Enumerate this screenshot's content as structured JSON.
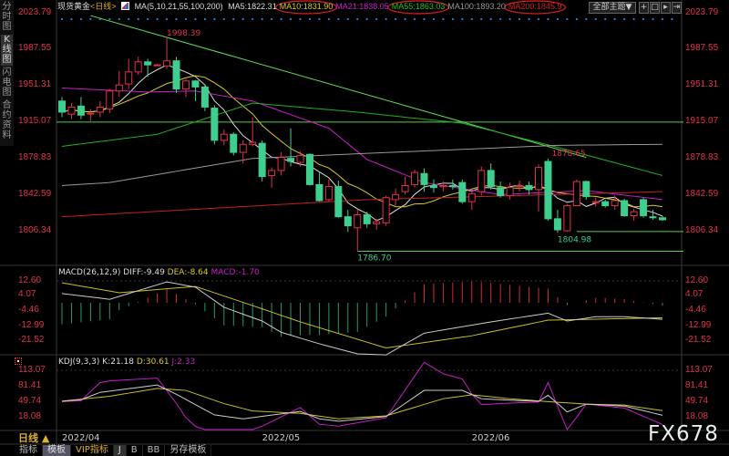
{
  "sidebar": {
    "tabs": [
      {
        "label": "分时图",
        "active": false
      },
      {
        "label": "K线图",
        "active": true
      },
      {
        "label": "闪电图",
        "active": false
      },
      {
        "label": "合约资料",
        "active": false
      }
    ]
  },
  "header": {
    "instrument": "现货黄金",
    "period": "<日线>",
    "ma_params": "MA(5,10,21,55,100,200)",
    "ma_values": [
      {
        "label": "MA5:1822.31",
        "color": "#dddddd",
        "circled": false
      },
      {
        "label": "MA10:1831.90",
        "color": "#d6cc22",
        "circled": true
      },
      {
        "label": "MA21:1838.05",
        "color": "#c81ec8",
        "circled": false
      },
      {
        "label": "MA55:1863.03",
        "color": "#22c022",
        "circled": true
      },
      {
        "label": "MA100:1893.20",
        "color": "#999999",
        "circled": false
      },
      {
        "label": "MA200:1845.9",
        "color": "#d42020",
        "circled": true
      }
    ],
    "theme_button": "全部主题▼",
    "tool_icons": [
      "crosshair-icon",
      "zoom-in-icon",
      "play-icon",
      "step-forward-icon"
    ]
  },
  "price_axis": [
    "2023.79",
    "1987.55",
    "1951.31",
    "1915.07",
    "1878.83",
    "1842.59",
    "1806.34"
  ],
  "macd": {
    "title": "MACD(26,12,9)",
    "diff_label": "DIFF:-9.49",
    "dea_label": "DEA:-8.64",
    "macd_label": "MACD:-1.70",
    "axis": [
      "12.60",
      "4.07",
      "-4.46",
      "-12.99",
      "-21.52"
    ]
  },
  "kdj": {
    "title": "KDJ(9,3,3)",
    "k_label": "K:21.18",
    "d_label": "D:30.61",
    "j_label": "J:2.33",
    "axis": [
      "113.07",
      "81.41",
      "49.74",
      "18.08"
    ]
  },
  "date_axis": {
    "period_label": "日线 ▲",
    "labels": [
      {
        "text": "2022/04",
        "date": "2022-04-01"
      },
      {
        "text": "2022/05",
        "date": "2022-05-02"
      },
      {
        "text": "2022/06",
        "date": "2022-06-01"
      }
    ]
  },
  "bottom_tabs": [
    {
      "label": "指标",
      "active": false,
      "color": "#bbbbbb"
    },
    {
      "label": "模板",
      "active": true,
      "color": "#dddddd"
    },
    {
      "label": "VIP指标",
      "active": false,
      "color": "#e0b030"
    },
    {
      "label": "J",
      "active": true,
      "color": "#dddddd"
    },
    {
      "label": "B",
      "active": false,
      "color": "#bbbbbb"
    },
    {
      "label": "BB",
      "active": false,
      "color": "#bbbbbb"
    },
    {
      "label": "另存模板",
      "active": false,
      "color": "#bbbbbb"
    }
  ],
  "watermark": "FX678",
  "colors": {
    "up": "#e0334a",
    "down": "#3ecf8e",
    "axis_text": "#e0334a",
    "trendline": "#66dd55",
    "hline": "#55cc44"
  },
  "chart_data": {
    "type": "candlestick",
    "price_range": [
      1775,
      2030
    ],
    "candles": [
      [
        "2022-04-01",
        1936,
        1940,
        1920,
        1925
      ],
      [
        "2022-04-04",
        1923,
        1934,
        1918,
        1930
      ],
      [
        "2022-04-05",
        1931,
        1940,
        1918,
        1922
      ],
      [
        "2022-04-06",
        1923,
        1928,
        1916,
        1924
      ],
      [
        "2022-04-07",
        1925,
        1936,
        1920,
        1930
      ],
      [
        "2022-04-08",
        1928,
        1948,
        1924,
        1946
      ],
      [
        "2022-04-11",
        1946,
        1966,
        1940,
        1952
      ],
      [
        "2022-04-12",
        1953,
        1978,
        1948,
        1965
      ],
      [
        "2022-04-13",
        1965,
        1980,
        1962,
        1975
      ],
      [
        "2022-04-14",
        1975,
        1978,
        1960,
        1972
      ],
      [
        "2022-04-15",
        1972,
        1973,
        1971,
        1972
      ],
      [
        "2022-04-18",
        1971,
        1998.39,
        1968,
        1976
      ],
      [
        "2022-04-19",
        1976,
        1980,
        1944,
        1948
      ],
      [
        "2022-04-20",
        1948,
        1958,
        1940,
        1956
      ],
      [
        "2022-04-21",
        1956,
        1957,
        1936,
        1950
      ],
      [
        "2022-04-22",
        1950,
        1952,
        1926,
        1930
      ],
      [
        "2022-04-25",
        1929,
        1932,
        1893,
        1897
      ],
      [
        "2022-04-26",
        1897,
        1908,
        1892,
        1903
      ],
      [
        "2022-04-27",
        1903,
        1905,
        1882,
        1885
      ],
      [
        "2022-04-28",
        1885,
        1897,
        1874,
        1893
      ],
      [
        "2022-04-29",
        1893,
        1920,
        1891,
        1895
      ],
      [
        "2022-05-02",
        1894,
        1897,
        1856,
        1861
      ],
      [
        "2022-05-03",
        1862,
        1870,
        1850,
        1867
      ],
      [
        "2022-05-04",
        1867,
        1885,
        1862,
        1880
      ],
      [
        "2022-05-05",
        1879,
        1909,
        1871,
        1876
      ],
      [
        "2022-05-06",
        1875,
        1886,
        1871,
        1882
      ],
      [
        "2022-05-09",
        1883,
        1884,
        1852,
        1853
      ],
      [
        "2022-05-10",
        1853,
        1866,
        1836,
        1837
      ],
      [
        "2022-05-11",
        1838,
        1858,
        1836,
        1851
      ],
      [
        "2022-05-12",
        1851,
        1857,
        1820,
        1821
      ],
      [
        "2022-05-13",
        1821,
        1828,
        1806,
        1812
      ],
      [
        "2022-05-16",
        1810,
        1828,
        1786.7,
        1823
      ],
      [
        "2022-05-17",
        1823,
        1826,
        1810,
        1814
      ],
      [
        "2022-05-18",
        1814,
        1819,
        1808,
        1816
      ],
      [
        "2022-05-19",
        1815,
        1842,
        1812,
        1840
      ],
      [
        "2022-05-20",
        1838,
        1849,
        1832,
        1843
      ],
      [
        "2022-05-23",
        1846,
        1861,
        1843,
        1852
      ],
      [
        "2022-05-24",
        1853,
        1868,
        1850,
        1865
      ],
      [
        "2022-05-25",
        1864,
        1869,
        1846,
        1853
      ],
      [
        "2022-05-26",
        1852,
        1858,
        1845,
        1850
      ],
      [
        "2022-05-27",
        1851,
        1856,
        1846,
        1852
      ],
      [
        "2022-05-30",
        1852,
        1858,
        1848,
        1851
      ],
      [
        "2022-05-31",
        1855,
        1858,
        1834,
        1836
      ],
      [
        "2022-06-01",
        1836,
        1848,
        1828,
        1844
      ],
      [
        "2022-06-02",
        1846,
        1871,
        1842,
        1867
      ],
      [
        "2022-06-03",
        1867,
        1874,
        1848,
        1851
      ],
      [
        "2022-06-06",
        1850,
        1856,
        1840,
        1842
      ],
      [
        "2022-06-07",
        1842,
        1855,
        1838,
        1850
      ],
      [
        "2022-06-08",
        1851,
        1857,
        1846,
        1852
      ],
      [
        "2022-06-09",
        1852,
        1856,
        1843,
        1848
      ],
      [
        "2022-06-10",
        1848,
        1873,
        1826,
        1870
      ],
      [
        "2022-06-13",
        1876,
        1878.65,
        1817,
        1819
      ],
      [
        "2022-06-14",
        1819,
        1828,
        1804.98,
        1808
      ],
      [
        "2022-06-15",
        1807,
        1834,
        1806,
        1832
      ],
      [
        "2022-06-16",
        1832,
        1858,
        1832,
        1856
      ],
      [
        "2022-06-17",
        1856,
        1857,
        1838,
        1841
      ],
      [
        "2022-06-20",
        1835,
        1840,
        1831,
        1836
      ],
      [
        "2022-06-21",
        1836,
        1838,
        1830,
        1832
      ],
      [
        "2022-06-22",
        1832,
        1842,
        1828,
        1837
      ],
      [
        "2022-06-23",
        1837,
        1839,
        1821,
        1822
      ],
      [
        "2022-06-24",
        1822,
        1829,
        1817,
        1826
      ],
      [
        "2022-06-27",
        1838,
        1840,
        1820,
        1822
      ],
      [
        "2022-06-28",
        1821,
        1828,
        1818,
        1820
      ],
      [
        "2022-06-29",
        1820,
        1822,
        1817,
        1818
      ]
    ],
    "price_labels": [
      {
        "text": "1998.39",
        "date": "2022-04-18",
        "price": 1998.39,
        "color": "#e0334a",
        "pos": "above"
      },
      {
        "text": "1786.70",
        "date": "2022-05-16",
        "price": 1786.7,
        "color": "#3ecf8e",
        "pos": "below"
      },
      {
        "text": "1804.98",
        "date": "2022-06-14",
        "price": 1804.98,
        "color": "#3ecf8e",
        "pos": "below"
      },
      {
        "text": "1878.65",
        "date": "2022-06-13",
        "price": 1878.65,
        "color": "#e0334a",
        "pos": "above"
      }
    ],
    "moving_averages": [
      {
        "name": "MA5",
        "period": 5,
        "color": "#dddddd"
      },
      {
        "name": "MA10",
        "period": 10,
        "color": "#d6cc22"
      },
      {
        "name": "MA21",
        "color": "#c81ec8",
        "points": [
          [
            "2022-04-01",
            1949
          ],
          [
            "2022-04-14",
            1945
          ],
          [
            "2022-04-21",
            1946
          ],
          [
            "2022-04-29",
            1936
          ],
          [
            "2022-05-11",
            1909
          ],
          [
            "2022-05-17",
            1878
          ],
          [
            "2022-05-25",
            1855
          ],
          [
            "2022-06-06",
            1843
          ],
          [
            "2022-06-17",
            1847
          ],
          [
            "2022-06-29",
            1838
          ]
        ]
      },
      {
        "name": "MA55",
        "color": "#22b022",
        "points": [
          [
            "2022-04-01",
            1891
          ],
          [
            "2022-04-15",
            1903
          ],
          [
            "2022-04-29",
            1934
          ],
          [
            "2022-05-16",
            1925
          ],
          [
            "2022-05-31",
            1914
          ],
          [
            "2022-06-14",
            1890
          ],
          [
            "2022-06-29",
            1862
          ]
        ]
      },
      {
        "name": "MA100",
        "color": "#999999",
        "points": [
          [
            "2022-04-01",
            1852
          ],
          [
            "2022-04-08",
            1855
          ],
          [
            "2022-04-29",
            1879
          ],
          [
            "2022-05-17",
            1884
          ],
          [
            "2022-06-14",
            1892
          ],
          [
            "2022-06-29",
            1893
          ]
        ]
      },
      {
        "name": "MA200",
        "color": "#c42020",
        "points": [
          [
            "2022-04-01",
            1821
          ],
          [
            "2022-05-17",
            1838
          ],
          [
            "2022-06-29",
            1846
          ]
        ]
      }
    ],
    "trendline": {
      "from": [
        "2022-04-06",
        2021
      ],
      "to": [
        "2022-06-17",
        1880
      ]
    },
    "horizontal_lines": [
      {
        "price": 1915.07,
        "from": null
      },
      {
        "price": 1786.7,
        "from": "2022-05-16"
      },
      {
        "price": 1806.34,
        "from": "2022-06-16"
      }
    ],
    "macd_range": [
      -33,
      14
    ],
    "diff": [
      [
        "2022-04-01",
        5.3
      ],
      [
        "2022-04-08",
        2
      ],
      [
        "2022-04-18",
        12
      ],
      [
        "2022-04-21",
        9
      ],
      [
        "2022-04-26",
        -2.6
      ],
      [
        "2022-05-02",
        -10.5
      ],
      [
        "2022-05-04",
        -17
      ],
      [
        "2022-05-10",
        -23.6
      ],
      [
        "2022-05-16",
        -29.4
      ],
      [
        "2022-05-19",
        -30
      ],
      [
        "2022-05-25",
        -17.5
      ],
      [
        "2022-06-03",
        -11
      ],
      [
        "2022-06-13",
        -6
      ],
      [
        "2022-06-15",
        -10.5
      ],
      [
        "2022-06-20",
        -8
      ],
      [
        "2022-06-23",
        -8
      ],
      [
        "2022-06-29",
        -9.49
      ]
    ],
    "dea": [
      [
        "2022-04-01",
        11.5
      ],
      [
        "2022-04-11",
        5.8
      ],
      [
        "2022-04-21",
        9.4
      ],
      [
        "2022-04-29",
        -1.6
      ],
      [
        "2022-05-06",
        -11
      ],
      [
        "2022-05-19",
        -26
      ],
      [
        "2022-06-01",
        -19
      ],
      [
        "2022-06-13",
        -10
      ],
      [
        "2022-06-15",
        -9.8
      ],
      [
        "2022-06-29",
        -8.64
      ]
    ],
    "kdj_range": [
      -15,
      120
    ],
    "k": [
      [
        "2022-04-01",
        49.7
      ],
      [
        "2022-04-05",
        53
      ],
      [
        "2022-04-07",
        68
      ],
      [
        "2022-04-15",
        83
      ],
      [
        "2022-04-19",
        64
      ],
      [
        "2022-04-25",
        22
      ],
      [
        "2022-04-28",
        14
      ],
      [
        "2022-05-06",
        29
      ],
      [
        "2022-05-10",
        14
      ],
      [
        "2022-05-12",
        9
      ],
      [
        "2022-05-19",
        18.7
      ],
      [
        "2022-05-25",
        72
      ],
      [
        "2022-05-31",
        72
      ],
      [
        "2022-06-02",
        55
      ],
      [
        "2022-06-07",
        52
      ],
      [
        "2022-06-10",
        49.7
      ],
      [
        "2022-06-13",
        62
      ],
      [
        "2022-06-15",
        28
      ],
      [
        "2022-06-17",
        44
      ],
      [
        "2022-06-23",
        40
      ],
      [
        "2022-06-29",
        21.18
      ]
    ],
    "d": [
      [
        "2022-04-01",
        50
      ],
      [
        "2022-04-08",
        60
      ],
      [
        "2022-04-15",
        76
      ],
      [
        "2022-04-20",
        72
      ],
      [
        "2022-04-26",
        45
      ],
      [
        "2022-04-29",
        30
      ],
      [
        "2022-05-06",
        25
      ],
      [
        "2022-05-12",
        14
      ],
      [
        "2022-05-19",
        20
      ],
      [
        "2022-05-27",
        55
      ],
      [
        "2022-06-01",
        63
      ],
      [
        "2022-06-07",
        55
      ],
      [
        "2022-06-13",
        49
      ],
      [
        "2022-06-17",
        44
      ],
      [
        "2022-06-23",
        42
      ],
      [
        "2022-06-29",
        30.61
      ]
    ]
  }
}
